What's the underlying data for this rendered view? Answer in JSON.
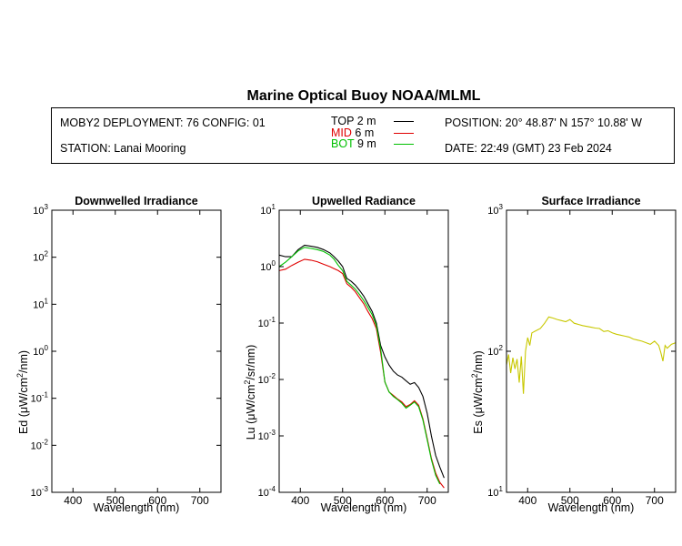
{
  "title": "Marine Optical Buoy NOAA/MLML",
  "header": {
    "deployment": "MOBY2 DEPLOYMENT: 76 CONFIG: 01",
    "station": "STATION: Lanai Mooring",
    "position": "POSITION: 20° 48.87' N   157° 10.88' W",
    "date": "DATE: 22:49 (GMT) 23 Feb 2024",
    "legend": [
      {
        "label": "TOP",
        "depth": "2",
        "unit": "m",
        "color": "#000000"
      },
      {
        "label": "MID",
        "depth": "6",
        "unit": "m",
        "color": "#e00000"
      },
      {
        "label": "BOT",
        "depth": "9",
        "unit": "m",
        "color": "#00c000"
      }
    ]
  },
  "chart_data": [
    {
      "type": "line",
      "title": "Downwelled Irradiance",
      "xlabel": "Wavelength (nm)",
      "ylabel": "Ed (μW/cm²/nm)",
      "yscale": "log",
      "xlim": [
        350,
        750
      ],
      "ylim": [
        0.001,
        1000
      ],
      "xticks": [
        400,
        500,
        600,
        700
      ],
      "yticks": [
        {
          "value": 1000,
          "base": "10",
          "exp": "3"
        },
        {
          "value": 100,
          "base": "10",
          "exp": "2"
        },
        {
          "value": 10,
          "base": "10",
          "exp": "1"
        },
        {
          "value": 1,
          "base": "10",
          "exp": "0"
        },
        {
          "value": 0.1,
          "base": "10",
          "exp": "-1"
        },
        {
          "value": 0.01,
          "base": "10",
          "exp": "-2"
        },
        {
          "value": 0.001,
          "base": "10",
          "exp": "-3"
        }
      ],
      "series": []
    },
    {
      "type": "line",
      "title": "Upwelled Radiance",
      "xlabel": "Wavelength (nm)",
      "ylabel": "Lu (μW/cm²/sr/nm)",
      "yscale": "log",
      "xlim": [
        350,
        750
      ],
      "ylim": [
        0.0001,
        10
      ],
      "xticks": [
        400,
        500,
        600,
        700
      ],
      "yticks": [
        {
          "value": 10,
          "base": "10",
          "exp": "1"
        },
        {
          "value": 1,
          "base": "10",
          "exp": "0"
        },
        {
          "value": 0.1,
          "base": "10",
          "exp": "-1"
        },
        {
          "value": 0.01,
          "base": "10",
          "exp": "-2"
        },
        {
          "value": 0.001,
          "base": "10",
          "exp": "-3"
        },
        {
          "value": 0.0001,
          "base": "10",
          "exp": "-4"
        }
      ],
      "series": [
        {
          "name": "TOP",
          "color": "#000000",
          "x": [
            350,
            365,
            380,
            395,
            410,
            425,
            440,
            455,
            470,
            480,
            490,
            500,
            510,
            520,
            530,
            540,
            550,
            560,
            570,
            580,
            590,
            600,
            610,
            620,
            630,
            640,
            650,
            660,
            670,
            680,
            690,
            700,
            710,
            720,
            730,
            740
          ],
          "y": [
            1.6,
            1.5,
            1.5,
            2.0,
            2.4,
            2.3,
            2.2,
            2.0,
            1.75,
            1.5,
            1.25,
            1.0,
            0.62,
            0.55,
            0.47,
            0.38,
            0.3,
            0.22,
            0.16,
            0.1,
            0.04,
            0.025,
            0.018,
            0.014,
            0.012,
            0.011,
            0.0095,
            0.0082,
            0.0088,
            0.0072,
            0.005,
            0.0025,
            0.001,
            0.00045,
            0.00028,
            0.00018
          ]
        },
        {
          "name": "MID",
          "color": "#e00000",
          "x": [
            350,
            365,
            380,
            395,
            410,
            425,
            440,
            455,
            470,
            480,
            490,
            500,
            510,
            520,
            530,
            540,
            550,
            560,
            570,
            580,
            590,
            600,
            610,
            620,
            630,
            640,
            650,
            660,
            670,
            680,
            690,
            700,
            710,
            720,
            730,
            740
          ],
          "y": [
            0.85,
            0.9,
            1.05,
            1.2,
            1.35,
            1.3,
            1.22,
            1.1,
            1.0,
            0.92,
            0.85,
            0.75,
            0.5,
            0.43,
            0.36,
            0.28,
            0.22,
            0.16,
            0.12,
            0.08,
            0.03,
            0.009,
            0.006,
            0.0052,
            0.0045,
            0.004,
            0.0033,
            0.0036,
            0.0042,
            0.0035,
            0.002,
            0.0009,
            0.0004,
            0.00022,
            0.00015,
            0.00012
          ]
        },
        {
          "name": "BOT",
          "color": "#00c000",
          "x": [
            350,
            365,
            380,
            395,
            410,
            425,
            440,
            455,
            470,
            480,
            490,
            500,
            510,
            520,
            530,
            540,
            550,
            560,
            570,
            580,
            590,
            600,
            610,
            620,
            630,
            640,
            650,
            660,
            670,
            680,
            690,
            700,
            710,
            720,
            730
          ],
          "y": [
            1.0,
            1.2,
            1.5,
            1.9,
            2.2,
            2.1,
            2.0,
            1.85,
            1.6,
            1.35,
            1.05,
            0.85,
            0.55,
            0.47,
            0.4,
            0.32,
            0.25,
            0.19,
            0.14,
            0.09,
            0.035,
            0.009,
            0.006,
            0.005,
            0.0044,
            0.0038,
            0.0031,
            0.0035,
            0.004,
            0.0033,
            0.0019,
            0.00085,
            0.00038,
            0.0002,
            0.00014
          ]
        }
      ]
    },
    {
      "type": "line",
      "title": "Surface Irradiance",
      "xlabel": "Wavelength (nm)",
      "ylabel": "Es (μW/cm²/nm)",
      "yscale": "log",
      "xlim": [
        350,
        750
      ],
      "ylim": [
        10,
        1000
      ],
      "xticks": [
        400,
        500,
        600,
        700
      ],
      "yticks": [
        {
          "value": 1000,
          "base": "10",
          "exp": "3"
        },
        {
          "value": 100,
          "base": "10",
          "exp": "2"
        },
        {
          "value": 10,
          "base": "10",
          "exp": "1"
        }
      ],
      "series": [
        {
          "name": "Es",
          "color": "#c8c800",
          "x": [
            350,
            355,
            360,
            365,
            370,
            375,
            380,
            385,
            390,
            395,
            400,
            405,
            410,
            420,
            430,
            440,
            450,
            460,
            470,
            480,
            490,
            500,
            510,
            520,
            530,
            540,
            550,
            560,
            570,
            580,
            590,
            600,
            610,
            620,
            630,
            640,
            650,
            660,
            670,
            680,
            690,
            700,
            710,
            715,
            720,
            725,
            730,
            740,
            750
          ],
          "y": [
            80,
            95,
            70,
            90,
            75,
            88,
            60,
            92,
            50,
            100,
            125,
            110,
            135,
            140,
            145,
            158,
            175,
            172,
            168,
            165,
            162,
            168,
            158,
            155,
            152,
            150,
            148,
            146,
            145,
            138,
            140,
            135,
            132,
            130,
            128,
            126,
            122,
            120,
            118,
            115,
            112,
            118,
            110,
            98,
            85,
            110,
            105,
            112,
            115
          ]
        }
      ]
    }
  ]
}
